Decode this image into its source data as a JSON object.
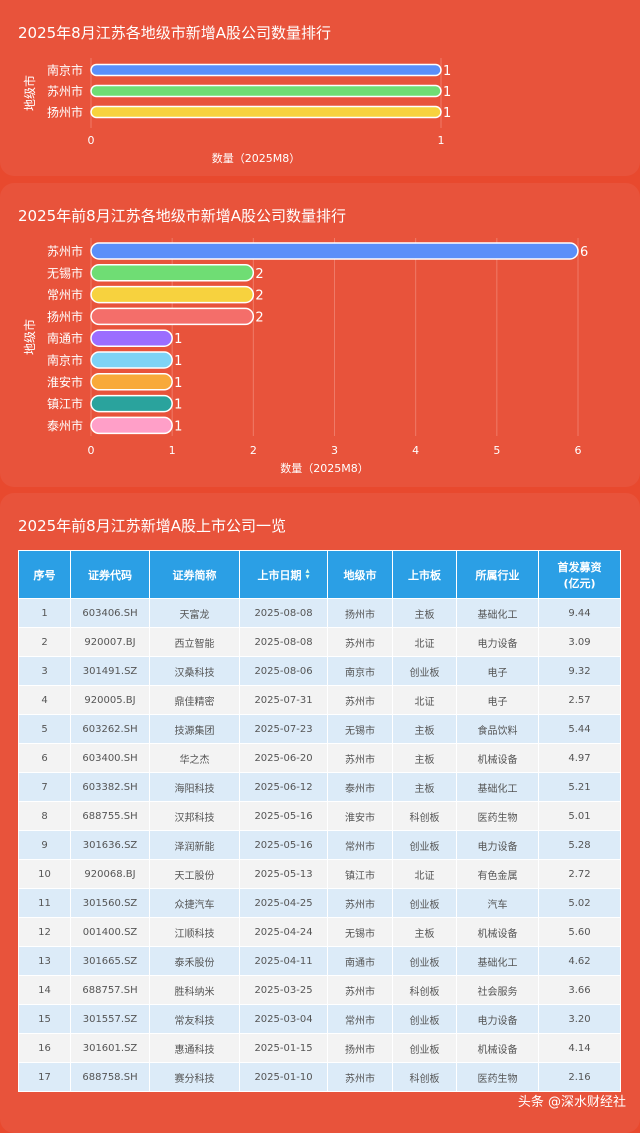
{
  "chart_data": [
    {
      "type": "bar",
      "orientation": "horizontal",
      "title": "2025年8月江苏各地级市新增A股公司数量排行",
      "ylabel": "地级市",
      "xlabel": "数量（2025M8）",
      "categories": [
        "南京市",
        "苏州市",
        "扬州市"
      ],
      "values": [
        1,
        1,
        1
      ],
      "colors": [
        "#5b8ff9",
        "#6fdd74",
        "#f7d23e"
      ],
      "xlim": [
        0,
        1
      ],
      "xticks": [
        0,
        1
      ],
      "grid": true,
      "legend": "none"
    },
    {
      "type": "bar",
      "orientation": "horizontal",
      "title": "2025年前8月江苏各地级市新增A股公司数量排行",
      "ylabel": "地级市",
      "xlabel": "数量（2025M8）",
      "categories": [
        "苏州市",
        "无锡市",
        "常州市",
        "扬州市",
        "南通市",
        "南京市",
        "淮安市",
        "镇江市",
        "泰州市"
      ],
      "values": [
        6,
        2,
        2,
        2,
        1,
        1,
        1,
        1,
        1
      ],
      "colors": [
        "#5b8ff9",
        "#6fdd74",
        "#f7d23e",
        "#f46e6a",
        "#9b6dff",
        "#7ed3f5",
        "#f8a93a",
        "#2aa39d",
        "#ff9fc8"
      ],
      "xlim": [
        0,
        6
      ],
      "xticks": [
        0,
        1,
        2,
        3,
        4,
        5,
        6
      ],
      "grid": true,
      "legend": "none"
    },
    {
      "type": "table",
      "title": "2025年前8月江苏新增A股上市公司一览",
      "headers": [
        "序号",
        "证券代码",
        "证券简称",
        "上市日期",
        "地级市",
        "上市板",
        "所属行业",
        "首发募资\n(亿元)"
      ],
      "rows": [
        [
          "1",
          "603406.SH",
          "天富龙",
          "2025-08-08",
          "扬州市",
          "主板",
          "基础化工",
          "9.44"
        ],
        [
          "2",
          "920007.BJ",
          "西立智能",
          "2025-08-08",
          "苏州市",
          "北证",
          "电力设备",
          "3.09"
        ],
        [
          "3",
          "301491.SZ",
          "汉桑科技",
          "2025-08-06",
          "南京市",
          "创业板",
          "电子",
          "9.32"
        ],
        [
          "4",
          "920005.BJ",
          "鼎佳精密",
          "2025-07-31",
          "苏州市",
          "北证",
          "电子",
          "2.57"
        ],
        [
          "5",
          "603262.SH",
          "技源集团",
          "2025-07-23",
          "无锡市",
          "主板",
          "食品饮料",
          "5.44"
        ],
        [
          "6",
          "603400.SH",
          "华之杰",
          "2025-06-20",
          "苏州市",
          "主板",
          "机械设备",
          "4.97"
        ],
        [
          "7",
          "603382.SH",
          "海阳科技",
          "2025-06-12",
          "泰州市",
          "主板",
          "基础化工",
          "5.21"
        ],
        [
          "8",
          "688755.SH",
          "汉邦科技",
          "2025-05-16",
          "淮安市",
          "科创板",
          "医药生物",
          "5.01"
        ],
        [
          "9",
          "301636.SZ",
          "泽润新能",
          "2025-05-16",
          "常州市",
          "创业板",
          "电力设备",
          "5.28"
        ],
        [
          "10",
          "920068.BJ",
          "天工股份",
          "2025-05-13",
          "镇江市",
          "北证",
          "有色金属",
          "2.72"
        ],
        [
          "11",
          "301560.SZ",
          "众捷汽车",
          "2025-04-25",
          "苏州市",
          "创业板",
          "汽车",
          "5.02"
        ],
        [
          "12",
          "001400.SZ",
          "江顺科技",
          "2025-04-24",
          "无锡市",
          "主板",
          "机械设备",
          "5.60"
        ],
        [
          "13",
          "301665.SZ",
          "泰禾股份",
          "2025-04-11",
          "南通市",
          "创业板",
          "基础化工",
          "4.62"
        ],
        [
          "14",
          "688757.SH",
          "胜科纳米",
          "2025-03-25",
          "苏州市",
          "科创板",
          "社会服务",
          "3.66"
        ],
        [
          "15",
          "301557.SZ",
          "常友科技",
          "2025-03-04",
          "常州市",
          "创业板",
          "电力设备",
          "3.20"
        ],
        [
          "16",
          "301601.SZ",
          "惠通科技",
          "2025-01-15",
          "扬州市",
          "创业板",
          "机械设备",
          "4.14"
        ],
        [
          "17",
          "688758.SH",
          "赛分科技",
          "2025-01-10",
          "苏州市",
          "科创板",
          "医药生物",
          "2.16"
        ]
      ]
    }
  ],
  "watermark": "头条 @深水财经社",
  "sort_icon": "sort-icon"
}
